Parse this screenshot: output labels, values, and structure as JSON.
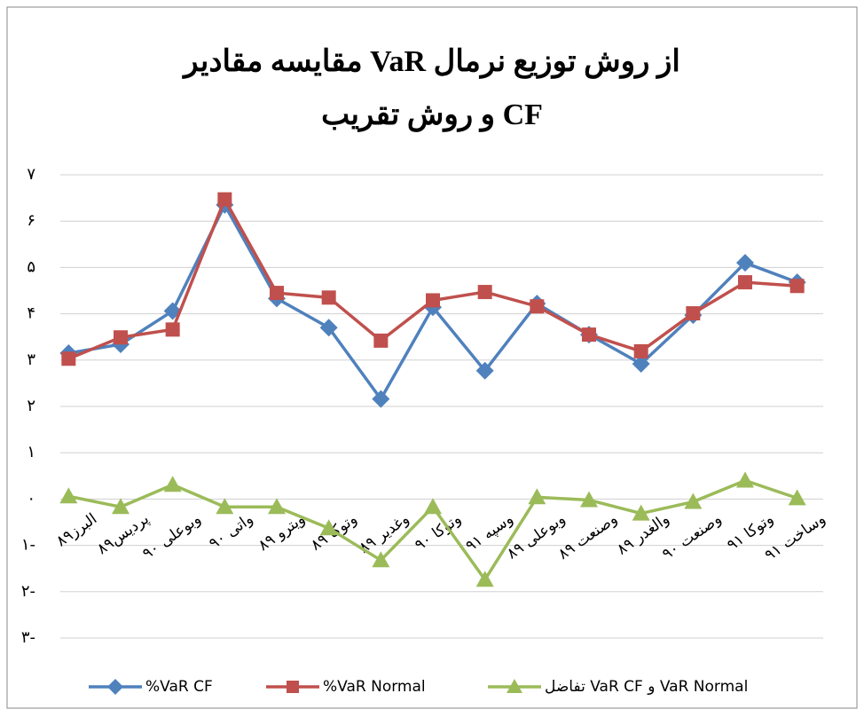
{
  "chart_data": {
    "type": "line",
    "title": [
      "مقایسه مقادیر VaR از روش توزیع نرمال",
      "و روش تقریب CF"
    ],
    "categories": [
      "البرز۸۹",
      "پردیس۸۹",
      "وبوعلی ۹۰",
      "واتی ۹۰",
      "ویترو ۸۹",
      "وتوکا ۸۹",
      "وغدیر ۸۹",
      "وتوکا ۹۰",
      "وسپه ۹۱",
      "وبوعلی ۸۹",
      "وصنعت ۸۹",
      "والغدر ۸۹",
      "وصنعت ۹۰",
      "وتوکا ۹۱",
      "وساخت ۹۱"
    ],
    "series": [
      {
        "name": "%VaR CF",
        "color": "#4f81bd",
        "marker": "diamond",
        "values": [
          3.15,
          3.34,
          4.06,
          6.35,
          4.33,
          3.7,
          2.16,
          4.14,
          2.77,
          4.22,
          3.55,
          2.92,
          3.97,
          5.1,
          4.68
        ]
      },
      {
        "name": "%VaR Normal",
        "color": "#c0504d",
        "marker": "square",
        "values": [
          3.03,
          3.49,
          3.66,
          6.47,
          4.45,
          4.35,
          3.42,
          4.29,
          4.47,
          4.16,
          3.55,
          3.19,
          4.01,
          4.68,
          4.6
        ]
      },
      {
        "name": "تفاضل VaR CF  و VaR Normal",
        "color": "#9bbb59",
        "marker": "triangle",
        "values": [
          0.06,
          -0.17,
          0.31,
          -0.17,
          -0.17,
          -0.63,
          -1.32,
          -0.17,
          -1.74,
          0.04,
          -0.02,
          -0.31,
          -0.06,
          0.4,
          0.02
        ]
      }
    ],
    "ylim": [
      -3,
      7
    ],
    "yticks": [
      {
        "value": 7,
        "label": "۷"
      },
      {
        "value": 6,
        "label": "۶"
      },
      {
        "value": 5,
        "label": "۵"
      },
      {
        "value": 4,
        "label": "۴"
      },
      {
        "value": 3,
        "label": "۳"
      },
      {
        "value": 2,
        "label": "۲"
      },
      {
        "value": 1,
        "label": "۱"
      },
      {
        "value": 0,
        "label": "۰"
      },
      {
        "value": -1,
        "label": "۱-"
      },
      {
        "value": -2,
        "label": "۲-"
      },
      {
        "value": -3,
        "label": "۳-"
      }
    ],
    "grid": true,
    "legend": "bottom"
  }
}
